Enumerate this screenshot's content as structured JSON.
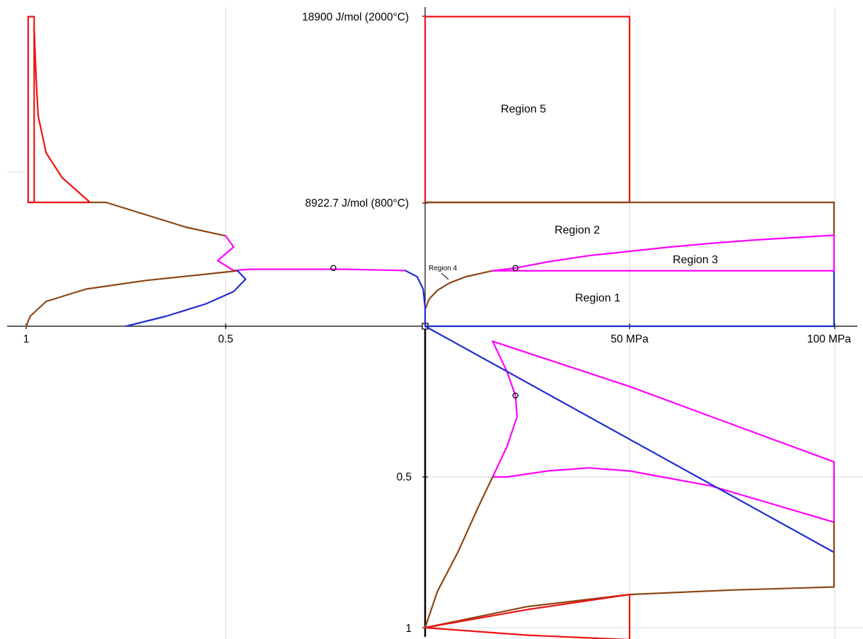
{
  "chart_data": {
    "type": "line",
    "title": "",
    "top_labels": {
      "t_max": "18900 J/mol (2000°C)",
      "t_mid": "8922.7 J/mol (800°C)"
    },
    "x_ticks": [
      "50 MPa",
      "100 MPa"
    ],
    "left_ticks": [
      "1",
      "0.5"
    ],
    "lower_ticks": [
      "0.5",
      "1"
    ],
    "regions": [
      "Region 1",
      "Region 2",
      "Region 3",
      "Region 4",
      "Region 5"
    ],
    "grid": true,
    "legend": "none",
    "colors": {
      "region1": "#1f2bd0",
      "region2": "#8b4513",
      "region3": "#ff00ff",
      "region4": "#8b4513",
      "region5": "#ee1111"
    },
    "series": [
      {
        "panel": "pressure-temperature",
        "color": "#ee1111",
        "values": [
          [
            0,
            2.5
          ],
          [
            50,
            2.5
          ],
          [
            50,
            1.0
          ],
          [
            0,
            1.0
          ],
          [
            0,
            2.5
          ]
        ]
      },
      {
        "panel": "pressure-temperature",
        "color": "#8b4513",
        "values": [
          [
            0,
            1.0
          ],
          [
            100,
            1.0
          ],
          [
            100,
            0.735
          ]
        ]
      },
      {
        "panel": "pressure-temperature",
        "color": "#ff00ff",
        "values": [
          [
            100,
            0.735
          ],
          [
            100,
            0.448
          ]
        ]
      },
      {
        "panel": "pressure-temperature",
        "color": "#1f2bd0",
        "values": [
          [
            100,
            0.448
          ],
          [
            100,
            0.0
          ],
          [
            0,
            0.0
          ]
        ]
      },
      {
        "panel": "pressure-temperature",
        "color": "#8b4513",
        "values": [
          [
            0,
            0.14
          ],
          [
            1,
            0.22
          ],
          [
            3,
            0.29
          ],
          [
            6,
            0.35
          ],
          [
            10,
            0.4
          ],
          [
            14,
            0.43
          ],
          [
            16.5,
            0.448
          ]
        ]
      },
      {
        "panel": "pressure-temperature",
        "color": "#ff00ff",
        "values": [
          [
            16.5,
            0.448
          ],
          [
            22.1,
            0.47
          ],
          [
            30,
            0.52
          ],
          [
            40,
            0.57
          ],
          [
            50,
            0.605
          ],
          [
            60,
            0.64
          ],
          [
            70,
            0.67
          ],
          [
            80,
            0.695
          ],
          [
            90,
            0.715
          ],
          [
            100,
            0.735
          ]
        ]
      },
      {
        "panel": "pressure-temperature",
        "color": "#ff00ff",
        "values": [
          [
            16.5,
            0.448
          ],
          [
            100,
            0.448
          ]
        ]
      },
      {
        "panel": "pressure-temperature",
        "color": "#000000",
        "marker": "circle",
        "values": [
          [
            22.1,
            0.47
          ]
        ]
      },
      {
        "panel": "fraction-temperature",
        "color": "#ee1111",
        "values": [
          [
            0.98,
            2.5
          ],
          [
            0.995,
            2.5
          ],
          [
            0.995,
            1.0
          ],
          [
            0.98,
            1.0
          ],
          [
            0.98,
            2.5
          ]
        ]
      },
      {
        "panel": "fraction-temperature",
        "color": "#ee1111",
        "values": [
          [
            0.98,
            2.4
          ],
          [
            0.975,
            2.0
          ],
          [
            0.97,
            1.7
          ],
          [
            0.95,
            1.4
          ],
          [
            0.91,
            1.2
          ],
          [
            0.84,
            1.0
          ],
          [
            0.995,
            1.0
          ]
        ]
      },
      {
        "panel": "fraction-temperature",
        "color": "#8b4513",
        "values": [
          [
            0.84,
            1.0
          ],
          [
            0.8,
            1.0
          ],
          [
            0.7,
            0.9
          ],
          [
            0.6,
            0.8
          ],
          [
            0.5,
            0.73
          ]
        ]
      },
      {
        "panel": "fraction-temperature",
        "color": "#ff00ff",
        "values": [
          [
            0.5,
            0.73
          ],
          [
            0.48,
            0.64
          ],
          [
            0.52,
            0.53
          ],
          [
            0.48,
            0.45
          ],
          [
            0.48,
            0.45
          ],
          [
            0.44,
            0.46
          ],
          [
            0.2,
            0.46
          ],
          [
            0.05,
            0.45
          ]
        ]
      },
      {
        "panel": "fraction-temperature",
        "color": "#8b4513",
        "values": [
          [
            1.0,
            0.0
          ],
          [
            0.99,
            0.08
          ],
          [
            0.95,
            0.2
          ],
          [
            0.85,
            0.3
          ],
          [
            0.7,
            0.37
          ],
          [
            0.55,
            0.42
          ],
          [
            0.47,
            0.448
          ]
        ]
      },
      {
        "panel": "fraction-temperature",
        "color": "#1f2bd0",
        "values": [
          [
            0.47,
            0.448
          ],
          [
            0.45,
            0.38
          ],
          [
            0.48,
            0.28
          ],
          [
            0.55,
            0.18
          ],
          [
            0.65,
            0.08
          ],
          [
            0.75,
            0.0
          ]
        ]
      },
      {
        "panel": "fraction-temperature",
        "color": "#1f2bd0",
        "values": [
          [
            0.05,
            0.45
          ],
          [
            0.02,
            0.4
          ],
          [
            0.005,
            0.3
          ],
          [
            0.0,
            0.15
          ],
          [
            0.0,
            0.0
          ]
        ]
      },
      {
        "panel": "fraction-temperature",
        "color": "#000000",
        "marker": "circle",
        "values": [
          [
            0.23,
            0.47
          ]
        ]
      },
      {
        "panel": "pressure-fraction",
        "color": "#ff00ff",
        "values": [
          [
            16.5,
            0.05
          ],
          [
            20,
            0.15
          ],
          [
            22.1,
            0.23
          ],
          [
            22.5,
            0.3
          ],
          [
            20,
            0.4
          ],
          [
            16.5,
            0.5
          ],
          [
            20,
            0.5
          ],
          [
            30,
            0.48
          ],
          [
            40,
            0.47
          ],
          [
            50,
            0.48
          ],
          [
            70,
            0.53
          ],
          [
            100,
            0.65
          ]
        ]
      },
      {
        "panel": "pressure-fraction",
        "color": "#ff00ff",
        "values": [
          [
            16.5,
            0.05
          ],
          [
            50,
            0.2
          ],
          [
            100,
            0.45
          ],
          [
            100,
            0.65
          ]
        ]
      },
      {
        "panel": "pressure-fraction",
        "color": "#1f2bd0",
        "values": [
          [
            0,
            0.0
          ],
          [
            100,
            0.75
          ]
        ]
      },
      {
        "panel": "pressure-fraction",
        "color": "#8b4513",
        "values": [
          [
            0,
            1.0
          ],
          [
            3,
            0.88
          ],
          [
            8,
            0.75
          ],
          [
            13,
            0.6
          ],
          [
            16.5,
            0.5
          ]
        ]
      },
      {
        "panel": "pressure-fraction",
        "color": "#8b4513",
        "values": [
          [
            0,
            1.0
          ],
          [
            25,
            0.93
          ],
          [
            50,
            0.89
          ],
          [
            75,
            0.875
          ],
          [
            100,
            0.865
          ],
          [
            100,
            0.65
          ]
        ]
      },
      {
        "panel": "pressure-fraction",
        "color": "#ee1111",
        "values": [
          [
            0,
            1.0
          ],
          [
            25,
            0.94
          ],
          [
            50,
            0.89
          ],
          [
            50,
            1.04
          ],
          [
            25,
            1.025
          ],
          [
            0,
            1.0
          ]
        ]
      },
      {
        "panel": "pressure-fraction",
        "color": "#000000",
        "marker": "circle",
        "values": [
          [
            22.1,
            0.23
          ]
        ]
      }
    ]
  }
}
